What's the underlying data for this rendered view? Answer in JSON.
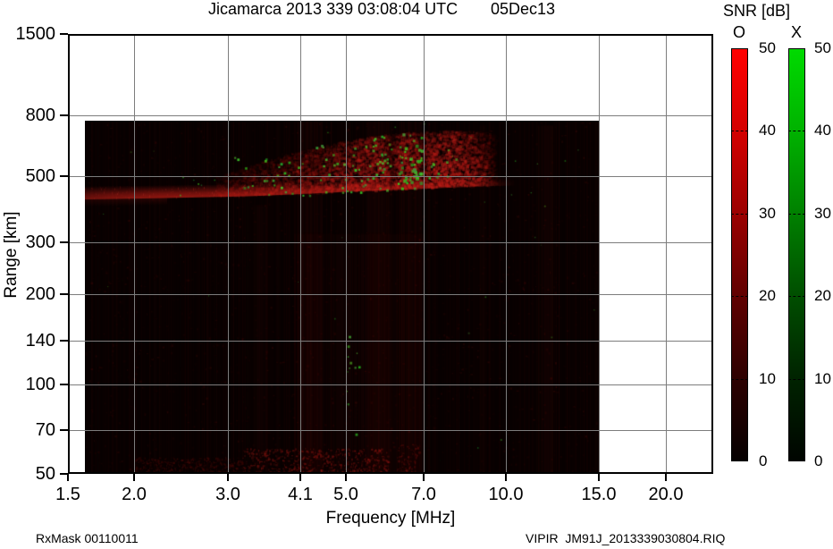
{
  "header": {
    "title": "Jicamarca 2013 339 03:08:04 UTC",
    "date": "05Dec13"
  },
  "footer": {
    "left": "RxMask 00110011",
    "right": "VIPIR  JM91J_2013339030804.RIQ"
  },
  "chart_data": {
    "type": "heatmap",
    "title": "Jicamarca 2013 339 03:08:04 UTC",
    "date_label": "05Dec13",
    "xlabel": "Frequency [MHz]",
    "ylabel": "Range [km]",
    "x_scale": "log",
    "y_scale": "log",
    "xlim": [
      1.5,
      24.6
    ],
    "ylim": [
      50,
      1500
    ],
    "grid": true,
    "x_ticks": [
      1.5,
      2.0,
      3.0,
      4.1,
      5.0,
      7.0,
      10.0,
      15.0,
      20.0
    ],
    "x_tick_labels": [
      "1.5",
      "2.0",
      "3.0",
      "4.1",
      "5.0",
      "7.0",
      "10.0",
      "15.0",
      "20.0"
    ],
    "y_ticks": [
      1500,
      800,
      500,
      300,
      200,
      140,
      100,
      70,
      50
    ],
    "y_tick_labels": [
      "1500",
      "800",
      "500",
      "300",
      "200",
      "140",
      "100",
      "70",
      "50"
    ],
    "colorbar_title": "SNR [dB]",
    "colorbars": [
      {
        "label": "O",
        "min": 0,
        "max": 50,
        "tick_labels": [
          "50",
          "40",
          "30",
          "20",
          "10",
          "0"
        ],
        "gradient": [
          "#ff0000",
          "#d30000",
          "#9b0000",
          "#600000",
          "#2d0000",
          "#060000"
        ]
      },
      {
        "label": "X",
        "min": 0,
        "max": 50,
        "tick_labels": [
          "50",
          "40",
          "30",
          "20",
          "10",
          "0"
        ],
        "gradient": [
          "#00da00",
          "#00b200",
          "#008000",
          "#004e00",
          "#002300",
          "#000500"
        ]
      }
    ],
    "data_extent": {
      "freq_mhz": [
        1.57,
        15.0
      ],
      "range_km": [
        50,
        766
      ]
    },
    "echo_trace_bottom_km": [
      [
        1.57,
        417
      ],
      [
        2.0,
        420
      ],
      [
        2.6,
        424
      ],
      [
        3.3,
        428
      ],
      [
        4.2,
        436
      ],
      [
        5.2,
        444
      ],
      [
        6.4,
        450
      ],
      [
        7.6,
        456
      ],
      [
        8.8,
        461
      ],
      [
        9.8,
        464
      ],
      [
        10.4,
        465
      ]
    ],
    "spread_f_top_km": [
      [
        2.9,
        505
      ],
      [
        3.4,
        555
      ],
      [
        4.1,
        608
      ],
      [
        4.9,
        655
      ],
      [
        5.8,
        690
      ],
      [
        6.6,
        705
      ],
      [
        7.6,
        712
      ],
      [
        8.6,
        712
      ],
      [
        9.5,
        700
      ]
    ],
    "spread_f_intensity": [
      [
        2.9,
        0.1
      ],
      [
        3.3,
        0.18
      ],
      [
        3.8,
        0.22
      ],
      [
        4.3,
        0.28
      ],
      [
        4.8,
        0.34
      ],
      [
        5.3,
        0.44
      ],
      [
        5.7,
        0.52
      ],
      [
        6.0,
        0.42
      ],
      [
        6.1,
        0.16
      ],
      [
        6.25,
        0.46
      ],
      [
        6.5,
        0.58
      ],
      [
        6.8,
        0.54
      ],
      [
        6.95,
        0.22
      ],
      [
        7.1,
        0.46
      ],
      [
        7.5,
        0.58
      ],
      [
        8.0,
        0.54
      ],
      [
        8.6,
        0.42
      ],
      [
        9.1,
        0.26
      ],
      [
        9.5,
        0.1
      ],
      [
        9.7,
        0.0
      ]
    ],
    "trace_intensity": [
      [
        1.57,
        0.48
      ],
      [
        1.8,
        0.58
      ],
      [
        2.2,
        0.65
      ],
      [
        3.0,
        0.65
      ],
      [
        4.0,
        0.62
      ],
      [
        5.0,
        0.6
      ],
      [
        6.0,
        0.56
      ],
      [
        6.1,
        0.32
      ],
      [
        6.3,
        0.52
      ],
      [
        7.0,
        0.47
      ],
      [
        7.6,
        0.42
      ],
      [
        8.4,
        0.32
      ],
      [
        9.2,
        0.22
      ],
      [
        10.0,
        0.1
      ],
      [
        10.4,
        0.0
      ]
    ],
    "trace_thickness_px": [
      [
        1.57,
        15
      ],
      [
        3.0,
        14
      ],
      [
        5.0,
        12
      ],
      [
        7.0,
        11
      ],
      [
        9.0,
        10
      ],
      [
        10.4,
        9
      ]
    ],
    "green_speckle_clusters": [
      [
        3.0,
        4.35,
        430,
        580,
        26,
        2,
        3,
        0.85
      ],
      [
        4.35,
        5.6,
        440,
        640,
        30,
        2,
        3,
        0.85
      ],
      [
        5.6,
        6.1,
        450,
        685,
        26,
        2,
        3,
        0.85
      ],
      [
        6.25,
        6.95,
        450,
        705,
        46,
        2,
        4,
        0.9
      ],
      [
        7.1,
        8.3,
        470,
        620,
        11,
        2,
        3,
        0.8
      ],
      [
        2.35,
        3.0,
        420,
        520,
        7,
        1,
        2,
        0.7
      ],
      [
        5.0,
        5.3,
        68,
        148,
        13,
        1,
        3,
        0.8
      ],
      [
        1.6,
        14.9,
        52,
        760,
        30,
        1,
        2,
        0.45
      ]
    ],
    "red_columns": [
      [
        4.05,
        4.5,
        50,
        766,
        0.045
      ],
      [
        5.5,
        6.0,
        50,
        766,
        0.05
      ],
      [
        6.3,
        6.9,
        50,
        766,
        0.045
      ],
      [
        11.5,
        12.25,
        50,
        740,
        0.05
      ],
      [
        3.35,
        3.55,
        50,
        400,
        0.04
      ],
      [
        4.0,
        7.0,
        50,
        320,
        0.035
      ],
      [
        8.9,
        9.15,
        50,
        740,
        0.03
      ]
    ],
    "bottom_smears": [
      [
        3.2,
        6.0,
        50,
        61,
        0.28
      ],
      [
        6.25,
        6.85,
        50,
        63,
        0.2
      ],
      [
        2.0,
        3.2,
        50,
        57,
        0.12
      ]
    ],
    "noise": {
      "seed": 20131205,
      "column_alpha": 0.055,
      "blocks": 3500,
      "block_alpha": 0.12,
      "green_blocks": 420,
      "background": "#070101"
    }
  }
}
